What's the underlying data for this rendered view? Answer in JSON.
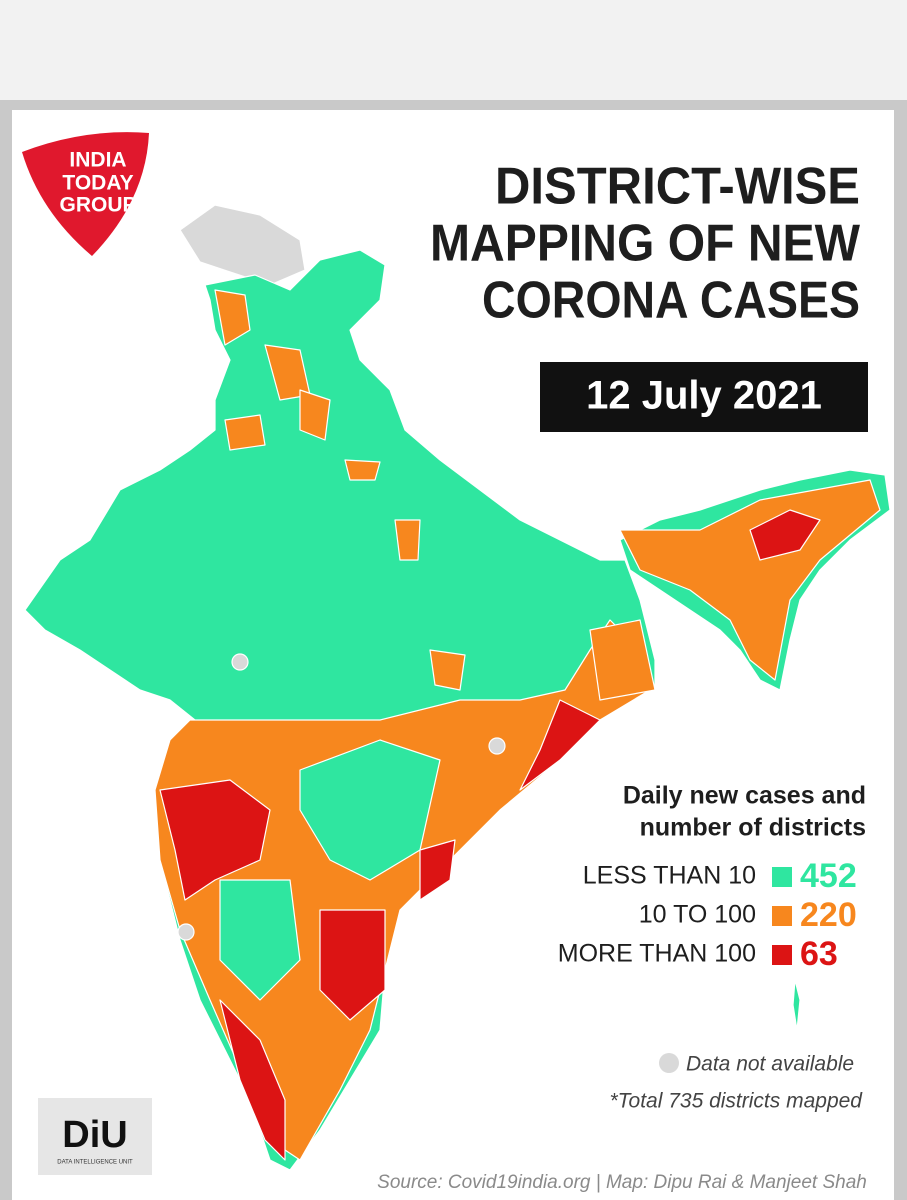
{
  "logo": {
    "lines": [
      "INDIA",
      "TODAY",
      "GROUP"
    ]
  },
  "title": {
    "lines": [
      "DISTRICT-WISE",
      "MAPPING OF NEW",
      "CORONA CASES"
    ]
  },
  "date": "12 July 2021",
  "legend": {
    "title": [
      "Daily new cases and",
      "number of districts"
    ],
    "items": [
      {
        "label": "LESS THAN 10",
        "count": 452,
        "color": "#2fe6a0"
      },
      {
        "label": "10 TO 100",
        "count": 220,
        "color": "#f7871e"
      },
      {
        "label": "MORE THAN 100",
        "count": 63,
        "color": "#dc1414"
      }
    ]
  },
  "notes": {
    "not_available": "Data not available",
    "total": "*Total 735 districts mapped"
  },
  "diu": {
    "label": "DiU",
    "sub": "DATA INTELLIGENCE UNIT"
  },
  "source": "Source: Covid19india.org | Map: Dipu Rai & Manjeet Shah"
}
